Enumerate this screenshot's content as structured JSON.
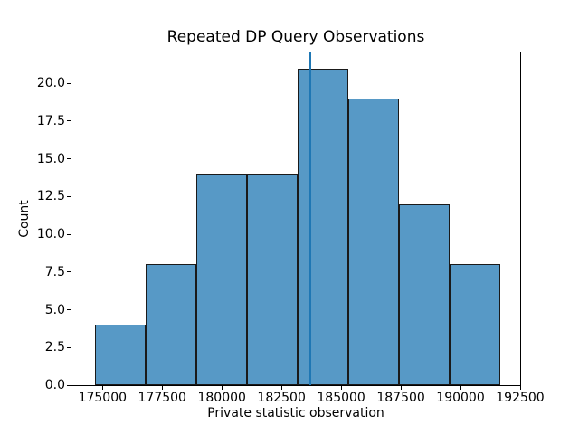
{
  "chart_data": {
    "type": "bar",
    "subtype": "histogram",
    "title": "Repeated DP Query Observations",
    "xlabel": "Private statistic observation",
    "ylabel": "Count",
    "bin_edges": [
      174695,
      176815,
      178940,
      181060,
      183185,
      185305,
      187425,
      189550,
      191670
    ],
    "counts": [
      4,
      8,
      14,
      14,
      21,
      19,
      12,
      8
    ],
    "vline_x": 183690,
    "x_ticks": [
      175000,
      177500,
      180000,
      182500,
      185000,
      187500,
      190000,
      192500
    ],
    "x_tick_labels": [
      "175000",
      "177500",
      "180000",
      "182500",
      "185000",
      "187500",
      "190000",
      "192500"
    ],
    "y_ticks": [
      0.0,
      2.5,
      5.0,
      7.5,
      10.0,
      12.5,
      15.0,
      17.5,
      20.0
    ],
    "y_tick_labels": [
      "0.0",
      "2.5",
      "5.0",
      "7.5",
      "10.0",
      "12.5",
      "15.0",
      "17.5",
      "20.0"
    ],
    "xlim": [
      173700,
      192500
    ],
    "ylim": [
      0,
      22.05
    ],
    "grid": false,
    "legend": null,
    "colors": {
      "bar_fill": "#5799c6",
      "bar_edge": "#1a1a1a",
      "vline": "#1f77b4",
      "spine": "#000000",
      "text": "#000000",
      "background": "#ffffff"
    }
  }
}
